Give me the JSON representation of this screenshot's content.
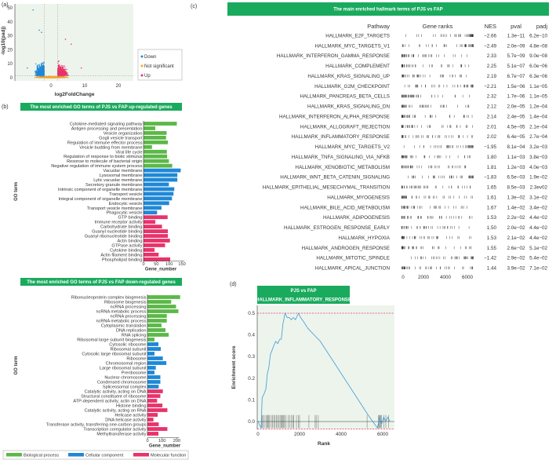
{
  "panel_labels": {
    "a": "(a)",
    "b": "(b)",
    "c": "(c)",
    "d": "(d)"
  },
  "colors": {
    "down": "#1f88d6",
    "up": "#e8336b",
    "not_significant": "#f5a623",
    "biological_process": "#5cb848",
    "cellular_component": "#1f88d6",
    "molecular_function": "#e8336b",
    "title_bar": "#1aaa5e",
    "plot_bg": "#edf4ec",
    "curve": "#3b9bd8"
  },
  "chart_data": [
    {
      "type": "scatter",
      "title": "",
      "xlabel": "log2FoldChange",
      "ylabel": "-log10(padj)",
      "xlim": [
        -11,
        24
      ],
      "ylim": [
        -1,
        52
      ],
      "xticks": [
        "0",
        "10",
        "20"
      ],
      "yticks": [
        "0",
        "10",
        "20",
        "30",
        "40",
        "50"
      ],
      "thresholds": {
        "log2fc": [
          -2,
          2
        ],
        "neg_log10_padj": 1.3
      },
      "legend": [
        "Down",
        "Not significant",
        "Up"
      ],
      "legend_position": "right"
    },
    {
      "type": "bar",
      "title": "The most enriched GO terms of PJS vs FAP up-regulated genes",
      "xlabel": "Gene_number",
      "ylabel": "GO term",
      "xlim": [
        0,
        150
      ],
      "xticks": [
        "0",
        "50",
        "100",
        "150"
      ],
      "categories": [
        "Cytokine-mediated signaling pathway",
        "Antigen processing and presentation",
        "Vesicle organization",
        "Gogli vesicle transport",
        "Regulation of immune effector process",
        "Vesicle budding from membrane",
        "Viral life cycle",
        "Regulation of response to biotic stimulus",
        "Resonse to molecule of bacterial origin",
        "Negative regulation of immune system process",
        "Vacuolar membrane",
        "Lysosomal membrane",
        "Lytic vacuolar membrane",
        "Secretory granule membrane",
        "Intrinsic component of organelle membrane",
        "Transport vesicle",
        "Integral component of organelle membrane",
        "Endocytic vesicle",
        "Transport vesicle membrane",
        "Phagocytic vesicle",
        "GTP binding",
        "Immune receptor activity",
        "Carbohydrate binding",
        "Guanyl nucleotide binding",
        "Guanyl ribonucleotide binding",
        "Actin binding",
        "GTPase activity",
        "Cytokine binding",
        "Actin filament binding",
        "Phospholipid binding"
      ],
      "values": [
        130,
        46,
        90,
        88,
        95,
        33,
        91,
        92,
        99,
        112,
        145,
        132,
        132,
        99,
        120,
        117,
        111,
        100,
        70,
        53,
        94,
        46,
        72,
        95,
        95,
        103,
        84,
        43,
        59,
        104
      ],
      "groups": [
        "BP",
        "BP",
        "BP",
        "BP",
        "BP",
        "BP",
        "BP",
        "BP",
        "BP",
        "BP",
        "CC",
        "CC",
        "CC",
        "CC",
        "CC",
        "CC",
        "CC",
        "CC",
        "CC",
        "CC",
        "MF",
        "MF",
        "MF",
        "MF",
        "MF",
        "MF",
        "MF",
        "MF",
        "MF",
        "MF"
      ]
    },
    {
      "type": "bar",
      "title": "The most enriched GO terms of PJS vs FAP down-regulated genes",
      "xlabel": "Gene_number",
      "ylabel": "GO term",
      "xlim": [
        0,
        260
      ],
      "xticks": [
        "0",
        "100",
        "200"
      ],
      "categories": [
        "Ribonucleoprotein complex biogenesis",
        "Ribosome biogenesis",
        "ncRNA processing",
        "ncRNA metabolic process",
        "ncRNA processing",
        "ncRNA metabolic process",
        "Cytoplasmic translation",
        "DNA replication",
        "RNA splicing",
        "Ribosomal large subunit biogenesis",
        "Cytosolic ribosome",
        "Ribosomal subunit",
        "Cytosolic large ribosomal subunit",
        "Ribosome",
        "Chromosomal region",
        "Large ribosomal subunit",
        "Preribosome",
        "Nuclear chromosome",
        "Condensed chromosome",
        "Spliceosomal complex",
        "Catalytic activity, acting on DNA",
        "Structural constituent of ribosome",
        "ATP-dependent activity, actin on DNA",
        "Histone binding",
        "Catalytic activity, acting on RNA",
        "Helicase activity",
        "DNA helicase activity",
        "Transferase activity, transferring one-carbon groups",
        "Transcription coregulator activity",
        "Methyltransferase activity"
      ],
      "values": [
        223,
        162,
        195,
        211,
        132,
        132,
        96,
        123,
        145,
        48,
        75,
        91,
        48,
        105,
        129,
        57,
        48,
        88,
        88,
        77,
        105,
        88,
        66,
        102,
        136,
        70,
        41,
        77,
        136,
        75
      ],
      "groups": [
        "BP",
        "BP",
        "BP",
        "BP",
        "BP",
        "BP",
        "BP",
        "BP",
        "BP",
        "BP",
        "CC",
        "CC",
        "CC",
        "CC",
        "CC",
        "CC",
        "CC",
        "CC",
        "CC",
        "CC",
        "MF",
        "MF",
        "MF",
        "MF",
        "MF",
        "MF",
        "MF",
        "MF",
        "MF",
        "MF"
      ]
    },
    {
      "type": "table",
      "title": "The main enriched hallmark terms of PJS vs FAP",
      "columns": [
        "Pathway",
        "Gene ranks",
        "NES",
        "pval",
        "padj"
      ],
      "rank_ticks": [
        "0",
        "2000",
        "4000",
        "6000"
      ],
      "rank_max": 6500,
      "rows": [
        {
          "pathway": "HALLMARK_E2F_TARGETS",
          "nes": "−2.66",
          "pval": "1.3e−11",
          "padj": "6.2e−10"
        },
        {
          "pathway": "HALLMARK_MYC_TARGETS_V1",
          "nes": "−2.49",
          "pval": "2.0e−09",
          "padj": "4.8e−08"
        },
        {
          "pathway": "HALLMARK_INTERFERON_GAMMA_RESPONSE",
          "nes": "2.33",
          "pval": "5.7e−09",
          "padj": "9.0e−08"
        },
        {
          "pathway": "HALLMARK_COMPLEMENT",
          "nes": "2.25",
          "pval": "5.1e−07",
          "padj": "6.0e−06"
        },
        {
          "pathway": "HALLMARK_KRAS_SIGNALING_UP",
          "nes": "2.19",
          "pval": "6.7e−07",
          "padj": "6.3e−06"
        },
        {
          "pathway": "HALLMARK_G2M_CHECKPOINT",
          "nes": "−2.21",
          "pval": "1.5e−06",
          "padj": "1.1e−05"
        },
        {
          "pathway": "HALLMARK_PANCREAS_BETA_CELLS",
          "nes": "2.32",
          "pval": "1.7e−06",
          "padj": "1.1e−05"
        },
        {
          "pathway": "HALLMARK_KRAS_SIGNALING_DN",
          "nes": "2.12",
          "pval": "2.0e−05",
          "padj": "1.2e−04"
        },
        {
          "pathway": "HALLMARK_INTERFERON_ALPHA_RESPONSE",
          "nes": "2.14",
          "pval": "2.4e−05",
          "padj": "1.4e−04"
        },
        {
          "pathway": "HALLMARK_ALLOGRAFT_REJECTION",
          "nes": "2.01",
          "pval": "4.5e−05",
          "padj": "2.1e−04"
        },
        {
          "pathway": "HALLMARK_INFLAMMATORY_RESPONSE",
          "nes": "2.02",
          "pval": "6.4e−05",
          "padj": "2.7e−04"
        },
        {
          "pathway": "HALLMARK_MYC_TARGETS_V2",
          "nes": "−1.95",
          "pval": "8.1e−04",
          "padj": "3.2e−03"
        },
        {
          "pathway": "HALLMARK_TNFA_SIGNALING_VIA_NFKB",
          "nes": "1.80",
          "pval": "1.1e−03",
          "padj": "3.8e−03"
        },
        {
          "pathway": "HALLMARK_XENOBIOTIC_METABOLISM",
          "nes": "1.81",
          "pval": "1.2e−03",
          "padj": "4.0e−03"
        },
        {
          "pathway": "HALLMARK_WNT_BETA_CATENIN_SIGNALING",
          "nes": "−1.83",
          "pval": "6.5e−03",
          "padj": "1.9e−02"
        },
        {
          "pathway": "HALLMARK_EPITHELIAL_MESECHYMAL_TRANSITION",
          "nes": "1.65",
          "pval": "8.5e−03",
          "padj": "2.3ev02"
        },
        {
          "pathway": "HALLMARK_MYOGENESIS",
          "nes": "1.61",
          "pval": "1.3e−02",
          "padj": "3.1e−02"
        },
        {
          "pathway": "HALLMARK_BILE_ACID_METABOLISM",
          "nes": "1.67",
          "pval": "1.4e−02",
          "padj": "3.4e−02"
        },
        {
          "pathway": "HALLMARK_ADIPOGENESIS",
          "nes": "1.53",
          "pval": "2.2e−02",
          "padj": "4.4e−02"
        },
        {
          "pathway": "HALLMARK_ESTROGEN_RESPONSE_EARLY",
          "nes": "1.50",
          "pval": "2.0e−02",
          "padj": "4.4e−02"
        },
        {
          "pathway": "HALLMARK_HYPOXIA",
          "nes": "1.53",
          "pval": "2.1e−02",
          "padj": "4.4e−02"
        },
        {
          "pathway": "HALLMARK_ANDROGEN_RESPONSE",
          "nes": "1.55",
          "pval": "2.6e−02",
          "padj": "5.1e−02"
        },
        {
          "pathway": "HALLMARK_MITOTIC_SPINDLE",
          "nes": "−1.42",
          "pval": "2.9e−02",
          "padj": "5.4e−02"
        },
        {
          "pathway": "HALLMARK_APICAL_JUNCTION",
          "nes": "1.44",
          "pval": "3.9e−02",
          "padj": "7.1e−02"
        }
      ]
    },
    {
      "type": "line",
      "title": "PJS vs FAP",
      "subtitle": "HALLMARK_INFLAMMATORY_RESPONSE",
      "xlabel": "Rank",
      "ylabel": "Enrichment score",
      "xlim": [
        -100,
        6600
      ],
      "ylim": [
        -0.04,
        0.52
      ],
      "xticks": [
        "0",
        "2000",
        "4000",
        "6000"
      ],
      "yticks": [
        "0.0",
        "0.1",
        "0.2",
        "0.3",
        "0.4",
        "0.5"
      ],
      "max_es": 0.5,
      "min_es": -0.035,
      "x": [
        0,
        150,
        200,
        300,
        380,
        450,
        520,
        600,
        680,
        760,
        850,
        950,
        1050,
        1120,
        1200,
        1300,
        1400,
        1500,
        1600,
        1700,
        1800,
        1950,
        2050,
        2200,
        2400,
        2700,
        3000,
        5300,
        5750,
        5850,
        5950,
        6050,
        6150,
        6250,
        6350
      ],
      "y": [
        0,
        -0.03,
        0.11,
        0.13,
        0.15,
        0.22,
        0.25,
        0.31,
        0.33,
        0.35,
        0.37,
        0.36,
        0.38,
        0.38,
        0.45,
        0.5,
        0.48,
        0.48,
        0.47,
        0.48,
        0.47,
        0.5,
        0.48,
        0.46,
        0.43,
        0.4,
        0.37,
        0.03,
        -0.03,
        0.02,
        -0.01,
        0.02,
        0.0,
        0.02,
        0.0
      ],
      "hits": [
        190,
        230,
        300,
        380,
        430,
        480,
        520,
        560,
        640,
        700,
        760,
        820,
        880,
        940,
        1000,
        1060,
        1120,
        1160,
        1200,
        1240,
        1280,
        1350,
        1450,
        1520,
        1600,
        1680,
        1720,
        1850,
        1950,
        2000,
        2450,
        2750,
        2800,
        2900,
        5250,
        5800,
        5830,
        5870,
        5900,
        5950,
        6050,
        6150,
        6280
      ]
    }
  ],
  "legend_go": [
    "Biological process",
    "Cellular component",
    "Molecular function"
  ]
}
